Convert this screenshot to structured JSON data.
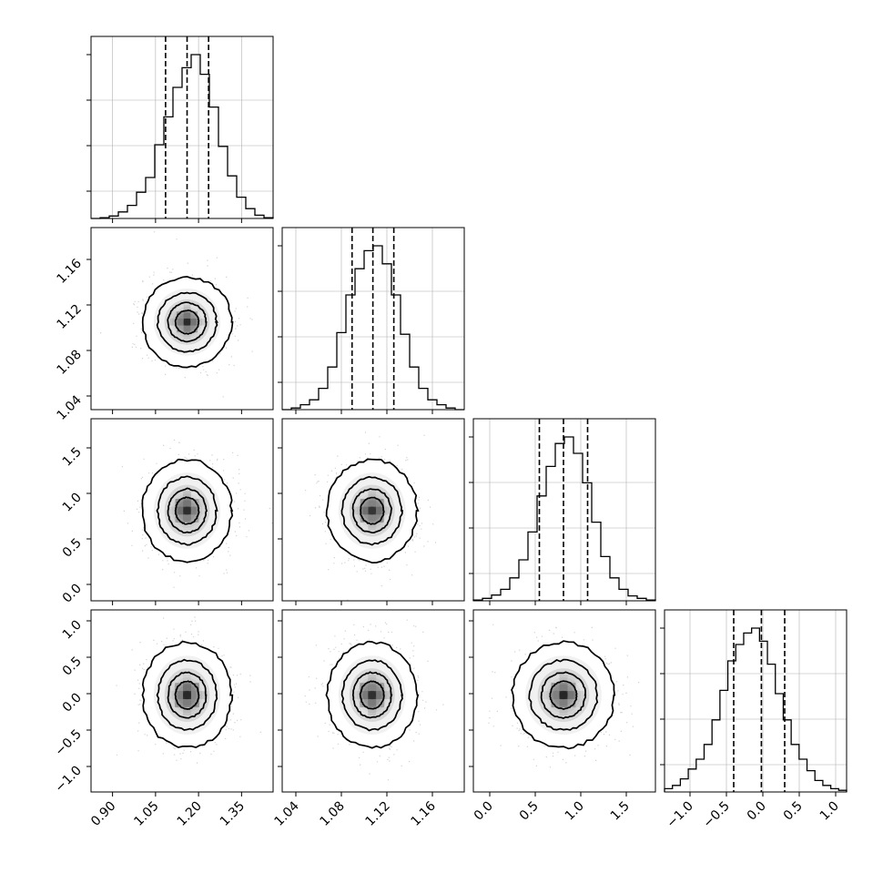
{
  "chart_data": {
    "type": "corner",
    "title": "",
    "n_params": 4,
    "params": [
      {
        "range": [
          0.825,
          1.46
        ],
        "ticks": [
          0.9,
          1.05,
          1.2,
          1.35
        ],
        "tick_labels": [
          "0.90",
          "1.05",
          "1.20",
          "1.35"
        ],
        "quantiles": [
          1.085,
          1.16,
          1.235
        ],
        "hist_counts": [
          0,
          0.5,
          1.5,
          4,
          8,
          16,
          25,
          45,
          62,
          80,
          92,
          100,
          88,
          68,
          44,
          26,
          13,
          6,
          2,
          0.5
        ]
      },
      {
        "range": [
          1.028,
          1.188
        ],
        "ticks": [
          1.04,
          1.08,
          1.12,
          1.16
        ],
        "tick_labels": [
          "1.04",
          "1.08",
          "1.12",
          "1.16"
        ],
        "quantiles": [
          1.0894,
          1.1077,
          1.1261
        ],
        "hist_counts": [
          0,
          1,
          3,
          6,
          13,
          26,
          47,
          70,
          86,
          97,
          100,
          89,
          70,
          46,
          26,
          13,
          6,
          3,
          1,
          0
        ]
      },
      {
        "range": [
          -0.18,
          1.82
        ],
        "ticks": [
          0.0,
          0.5,
          1.0,
          1.5
        ],
        "tick_labels": [
          "0.0",
          "0.5",
          "1.0",
          "1.5"
        ],
        "quantiles": [
          0.545,
          0.81,
          1.075
        ],
        "hist_counts": [
          0.5,
          1.5,
          3.5,
          7,
          14,
          25,
          42,
          64,
          82,
          96,
          100,
          90,
          72,
          48,
          27,
          14,
          7,
          3,
          1.5,
          0.5
        ]
      },
      {
        "range": [
          -1.35,
          1.15
        ],
        "ticks": [
          -1.0,
          -0.5,
          0.0,
          0.5,
          1.0
        ],
        "tick_labels": [
          "−1.0",
          "−0.5",
          "0.0",
          "0.5",
          "1.0"
        ],
        "quantiles": [
          -0.4,
          -0.02,
          0.3
        ],
        "hist_counts": [
          2,
          4,
          8,
          14,
          20,
          29,
          44,
          62,
          80,
          90,
          97,
          100,
          92,
          78,
          60,
          44,
          29,
          20,
          13,
          7,
          4,
          2,
          1
        ]
      }
    ],
    "pair_panels": [
      {
        "row": 1,
        "col": 0,
        "center": [
          1.16,
          1.105
        ],
        "spread": [
          0.075,
          0.019
        ]
      },
      {
        "row": 2,
        "col": 0,
        "center": [
          1.16,
          0.81
        ],
        "spread": [
          0.075,
          0.27
        ]
      },
      {
        "row": 2,
        "col": 1,
        "center": [
          1.107,
          0.81
        ],
        "spread": [
          0.019,
          0.27
        ]
      },
      {
        "row": 3,
        "col": 0,
        "center": [
          1.16,
          -0.02
        ],
        "spread": [
          0.075,
          0.35
        ]
      },
      {
        "row": 3,
        "col": 1,
        "center": [
          1.107,
          -0.02
        ],
        "spread": [
          0.019,
          0.35
        ]
      },
      {
        "row": 3,
        "col": 2,
        "center": [
          0.81,
          -0.02
        ],
        "spread": [
          0.27,
          0.35
        ]
      }
    ],
    "contour_levels_sigma": [
      0.5,
      1.0,
      1.5,
      2.0
    ],
    "grid": true,
    "colors": {
      "line": "#000000",
      "points": "#bfbfbf",
      "grid": "#b0b0b0"
    }
  }
}
